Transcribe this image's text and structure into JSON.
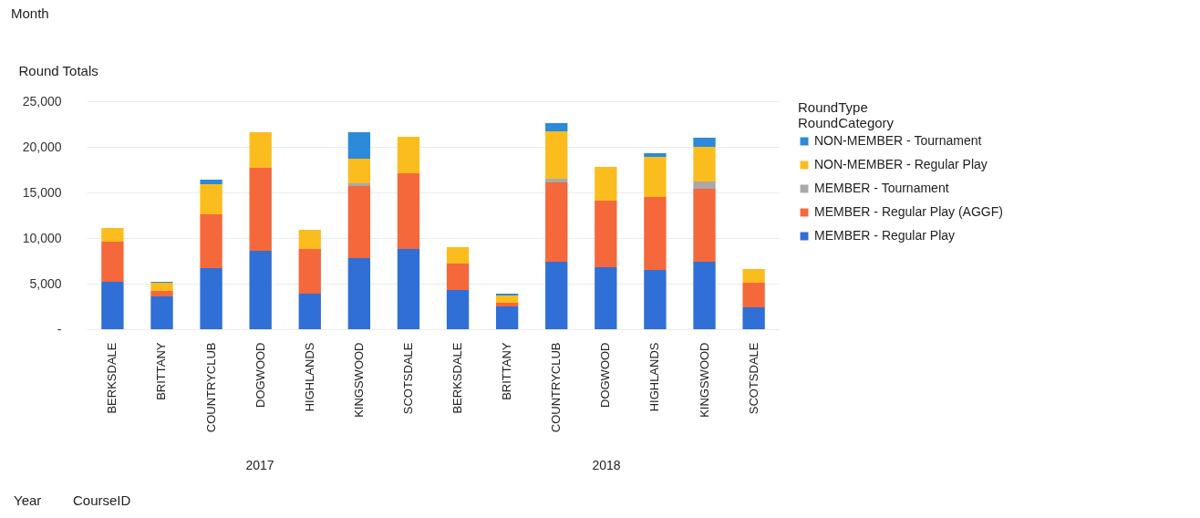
{
  "chart_data": {
    "type": "bar",
    "stacked": true,
    "ylabel": "Round Totals",
    "legend_title": "RoundType\nRoundCategory",
    "legend": "right",
    "grid": "y",
    "categories": [
      "BERKSDALE",
      "BRITTANY",
      "COUNTRYCLUB",
      "DOGWOOD",
      "HIGHLANDS",
      "KINGSWOOD",
      "SCOTSDALE",
      "BERKSDALE",
      "BRITTANY",
      "COUNTRYCLUB",
      "DOGWOOD",
      "HIGHLANDS",
      "KINGSWOOD",
      "SCOTSDALE"
    ],
    "ylim": [
      0,
      25000
    ],
    "yticks": [
      {
        "value": 0,
        "label": "-"
      },
      {
        "value": 5000,
        "label": "5,000"
      },
      {
        "value": 10000,
        "label": "10,000"
      },
      {
        "value": 15000,
        "label": "15,000"
      },
      {
        "value": 20000,
        "label": "20,000"
      },
      {
        "value": 25000,
        "label": "25,000"
      }
    ],
    "series": [
      {
        "name": "MEMBER - Regular Play",
        "color": "#2f6fd6",
        "values": [
          5200,
          3600,
          6700,
          8600,
          3900,
          7800,
          8800,
          4300,
          2500,
          7400,
          6800,
          6500,
          7400,
          2400
        ]
      },
      {
        "name": "MEMBER - Regular Play (AGGF)",
        "color": "#f4683c",
        "values": [
          4400,
          600,
          5900,
          9100,
          4900,
          7900,
          8300,
          2900,
          400,
          8700,
          7300,
          8000,
          8000,
          2700
        ]
      },
      {
        "name": "MEMBER - Tournament",
        "color": "#a9a9a9",
        "values": [
          0,
          0,
          0,
          0,
          0,
          300,
          0,
          0,
          0,
          400,
          0,
          0,
          800,
          0
        ]
      },
      {
        "name": "NON-MEMBER - Regular Play",
        "color": "#fbbd1e",
        "values": [
          1500,
          900,
          3300,
          3900,
          2100,
          2700,
          4000,
          1800,
          800,
          5200,
          3700,
          4400,
          3800,
          1500
        ]
      },
      {
        "name": "NON-MEMBER - Tournament",
        "color": "#2b8ad9",
        "values": [
          0,
          100,
          500,
          0,
          0,
          2900,
          0,
          0,
          200,
          900,
          0,
          400,
          1000,
          0
        ]
      }
    ],
    "annotations": [
      "Month",
      "2017",
      "2018",
      "Year",
      "CourseID"
    ]
  }
}
